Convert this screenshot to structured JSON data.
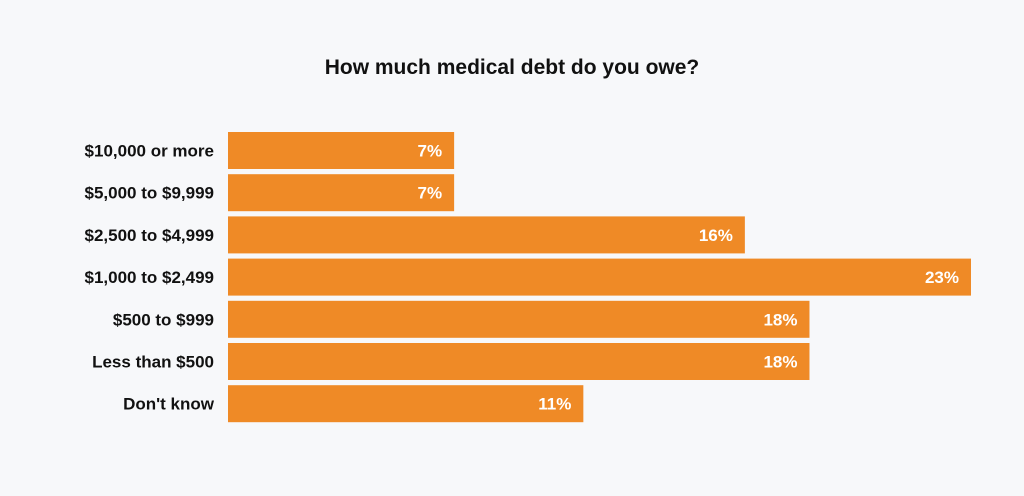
{
  "chart_data": {
    "type": "bar",
    "orientation": "horizontal",
    "title": "How much medical debt do you owe?",
    "xlabel": "",
    "ylabel": "",
    "categories": [
      "$10,000 or more",
      "$5,000 to $9,999",
      "$2,500 to $4,999",
      "$1,000 to $2,499",
      "$500 to $999",
      "Less than $500",
      "Don't know"
    ],
    "values": [
      7,
      7,
      16,
      23,
      18,
      18,
      11
    ],
    "value_labels": [
      "7%",
      "7%",
      "16%",
      "23%",
      "18%",
      "18%",
      "11%"
    ],
    "xlim": [
      0,
      23
    ],
    "grid": false,
    "legend": "none",
    "bar_color": "#ef8a26",
    "background_color": "#f7f8fa"
  }
}
